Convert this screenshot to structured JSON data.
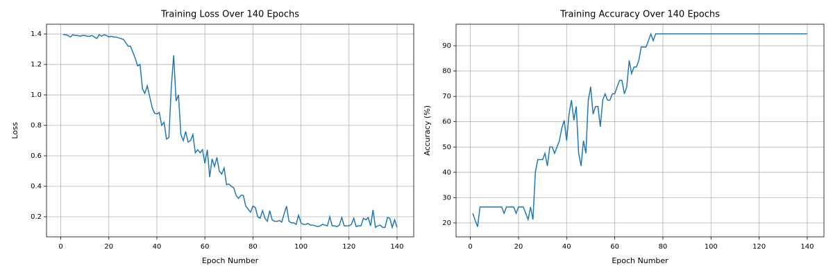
{
  "chart_data": [
    {
      "type": "line",
      "title": "Training Loss Over 140 Epochs",
      "xlabel": "Epoch Number",
      "ylabel": "Loss",
      "color": "#1f77b4",
      "grid": true,
      "x": [
        1,
        2,
        3,
        4,
        5,
        6,
        7,
        8,
        9,
        10,
        11,
        12,
        13,
        14,
        15,
        16,
        17,
        18,
        19,
        20,
        21,
        22,
        23,
        24,
        25,
        26,
        27,
        28,
        29,
        30,
        31,
        32,
        33,
        34,
        35,
        36,
        37,
        38,
        39,
        40,
        41,
        42,
        43,
        44,
        45,
        46,
        47,
        48,
        49,
        50,
        51,
        52,
        53,
        54,
        55,
        56,
        57,
        58,
        59,
        60,
        61,
        62,
        63,
        64,
        65,
        66,
        67,
        68,
        69,
        70,
        71,
        72,
        73,
        74,
        75,
        76,
        77,
        78,
        79,
        80,
        81,
        82,
        83,
        84,
        85,
        86,
        87,
        88,
        89,
        90,
        91,
        92,
        93,
        94,
        95,
        96,
        97,
        98,
        99,
        100,
        101,
        102,
        103,
        104,
        105,
        106,
        107,
        108,
        109,
        110,
        111,
        112,
        113,
        114,
        115,
        116,
        117,
        118,
        119,
        120,
        121,
        122,
        123,
        124,
        125,
        126,
        127,
        128,
        129,
        130,
        131,
        132,
        133,
        134,
        135,
        136,
        137,
        138,
        139,
        140
      ],
      "values": [
        1.395,
        1.395,
        1.39,
        1.38,
        1.395,
        1.39,
        1.39,
        1.385,
        1.39,
        1.39,
        1.385,
        1.385,
        1.39,
        1.38,
        1.37,
        1.395,
        1.385,
        1.395,
        1.39,
        1.38,
        1.385,
        1.38,
        1.38,
        1.375,
        1.37,
        1.365,
        1.345,
        1.32,
        1.32,
        1.28,
        1.24,
        1.19,
        1.2,
        1.04,
        1.01,
        1.06,
        0.99,
        0.92,
        0.88,
        0.875,
        0.885,
        0.8,
        0.82,
        0.71,
        0.72,
        1.05,
        1.26,
        0.96,
        1.0,
        0.74,
        0.7,
        0.76,
        0.69,
        0.7,
        0.74,
        0.62,
        0.64,
        0.62,
        0.64,
        0.55,
        0.64,
        0.46,
        0.58,
        0.53,
        0.59,
        0.5,
        0.48,
        0.52,
        0.41,
        0.415,
        0.4,
        0.39,
        0.34,
        0.32,
        0.34,
        0.34,
        0.27,
        0.25,
        0.23,
        0.27,
        0.26,
        0.2,
        0.19,
        0.24,
        0.19,
        0.17,
        0.24,
        0.18,
        0.17,
        0.17,
        0.175,
        0.165,
        0.22,
        0.27,
        0.17,
        0.16,
        0.16,
        0.15,
        0.21,
        0.16,
        0.15,
        0.15,
        0.155,
        0.145,
        0.145,
        0.14,
        0.135,
        0.14,
        0.15,
        0.145,
        0.14,
        0.2,
        0.14,
        0.14,
        0.135,
        0.145,
        0.195,
        0.14,
        0.14,
        0.14,
        0.15,
        0.19,
        0.135,
        0.14,
        0.14,
        0.19,
        0.18,
        0.195,
        0.14,
        0.245,
        0.13,
        0.14,
        0.145,
        0.13,
        0.13,
        0.195,
        0.19,
        0.13,
        0.18,
        0.13
      ],
      "xlim": [
        -5.95,
        146.95
      ],
      "xticks": [
        0,
        20,
        40,
        60,
        80,
        100,
        120,
        140
      ],
      "ylim": [
        0.068,
        1.464
      ],
      "yticks": [
        0.2,
        0.4,
        0.6,
        0.8,
        1.0,
        1.2,
        1.4
      ]
    },
    {
      "type": "line",
      "title": "Training Accuracy Over 140 Epochs",
      "xlabel": "Epoch Number",
      "ylabel": "Accuracy (%)",
      "color": "#1f77b4",
      "grid": true,
      "x": [
        1,
        2,
        3,
        4,
        5,
        6,
        7,
        8,
        9,
        10,
        11,
        12,
        13,
        14,
        15,
        16,
        17,
        18,
        19,
        20,
        21,
        22,
        23,
        24,
        25,
        26,
        27,
        28,
        29,
        30,
        31,
        32,
        33,
        34,
        35,
        36,
        37,
        38,
        39,
        40,
        41,
        42,
        43,
        44,
        45,
        46,
        47,
        48,
        49,
        50,
        51,
        52,
        53,
        54,
        55,
        56,
        57,
        58,
        59,
        60,
        61,
        62,
        63,
        64,
        65,
        66,
        67,
        68,
        69,
        70,
        71,
        72,
        73,
        74,
        75,
        76,
        77,
        78,
        79,
        80,
        81,
        82,
        83,
        84,
        85,
        86,
        87,
        88,
        89,
        90,
        91,
        92,
        93,
        94,
        95,
        96,
        97,
        98,
        99,
        100,
        101,
        102,
        103,
        104,
        105,
        106,
        107,
        108,
        109,
        110,
        111,
        112,
        113,
        114,
        115,
        116,
        117,
        118,
        119,
        120,
        121,
        122,
        123,
        124,
        125,
        126,
        127,
        128,
        129,
        130,
        131,
        132,
        133,
        134,
        135,
        136,
        137,
        138,
        139,
        140
      ],
      "values": [
        23.8,
        21,
        18.5,
        26.3,
        26.3,
        26.3,
        26.3,
        26.3,
        26.3,
        26.3,
        26.3,
        26.3,
        26.3,
        23.8,
        26.3,
        26.3,
        26.3,
        26.3,
        23.8,
        26.3,
        26.3,
        26.3,
        23.8,
        21.3,
        26.3,
        21.3,
        40,
        45,
        45,
        45,
        47.5,
        42.5,
        50,
        50,
        47.5,
        50,
        52.5,
        57.5,
        60.5,
        52.5,
        63,
        68.5,
        60.5,
        66,
        47.5,
        42.5,
        52.5,
        47.5,
        68.5,
        73.8,
        63,
        66,
        66,
        58,
        68.5,
        71,
        68.5,
        68.5,
        71,
        71,
        73.8,
        76.3,
        76.3,
        71,
        73.8,
        84.2,
        79,
        81.6,
        81.6,
        84.2,
        89.5,
        89.5,
        89.5,
        92,
        94.7,
        92,
        94.7,
        94.7,
        94.7,
        94.7,
        94.7,
        94.7,
        94.7,
        94.7,
        94.7,
        94.7,
        94.7,
        94.7,
        94.7,
        94.7,
        94.7,
        94.7,
        94.7,
        94.7,
        94.7,
        94.7,
        94.7,
        94.7,
        94.7,
        94.7,
        94.7,
        94.7,
        94.7,
        94.7,
        94.7,
        94.7,
        94.7,
        94.7,
        94.7,
        94.7,
        94.7,
        94.7,
        94.7,
        94.7,
        94.7,
        94.7,
        94.7,
        94.7,
        94.7,
        94.7,
        94.7,
        94.7,
        94.7,
        94.7,
        94.7,
        94.7,
        94.7,
        94.7,
        94.7,
        94.7,
        94.7,
        94.7,
        94.7,
        94.7,
        94.7,
        94.7,
        94.7,
        94.7,
        94.7,
        94.7
      ],
      "xlim": [
        -5.95,
        146.95
      ],
      "xticks": [
        0,
        20,
        40,
        60,
        80,
        100,
        120,
        140
      ],
      "ylim": [
        14.5,
        98.5
      ],
      "yticks": [
        20,
        30,
        40,
        50,
        60,
        70,
        80,
        90
      ]
    }
  ]
}
